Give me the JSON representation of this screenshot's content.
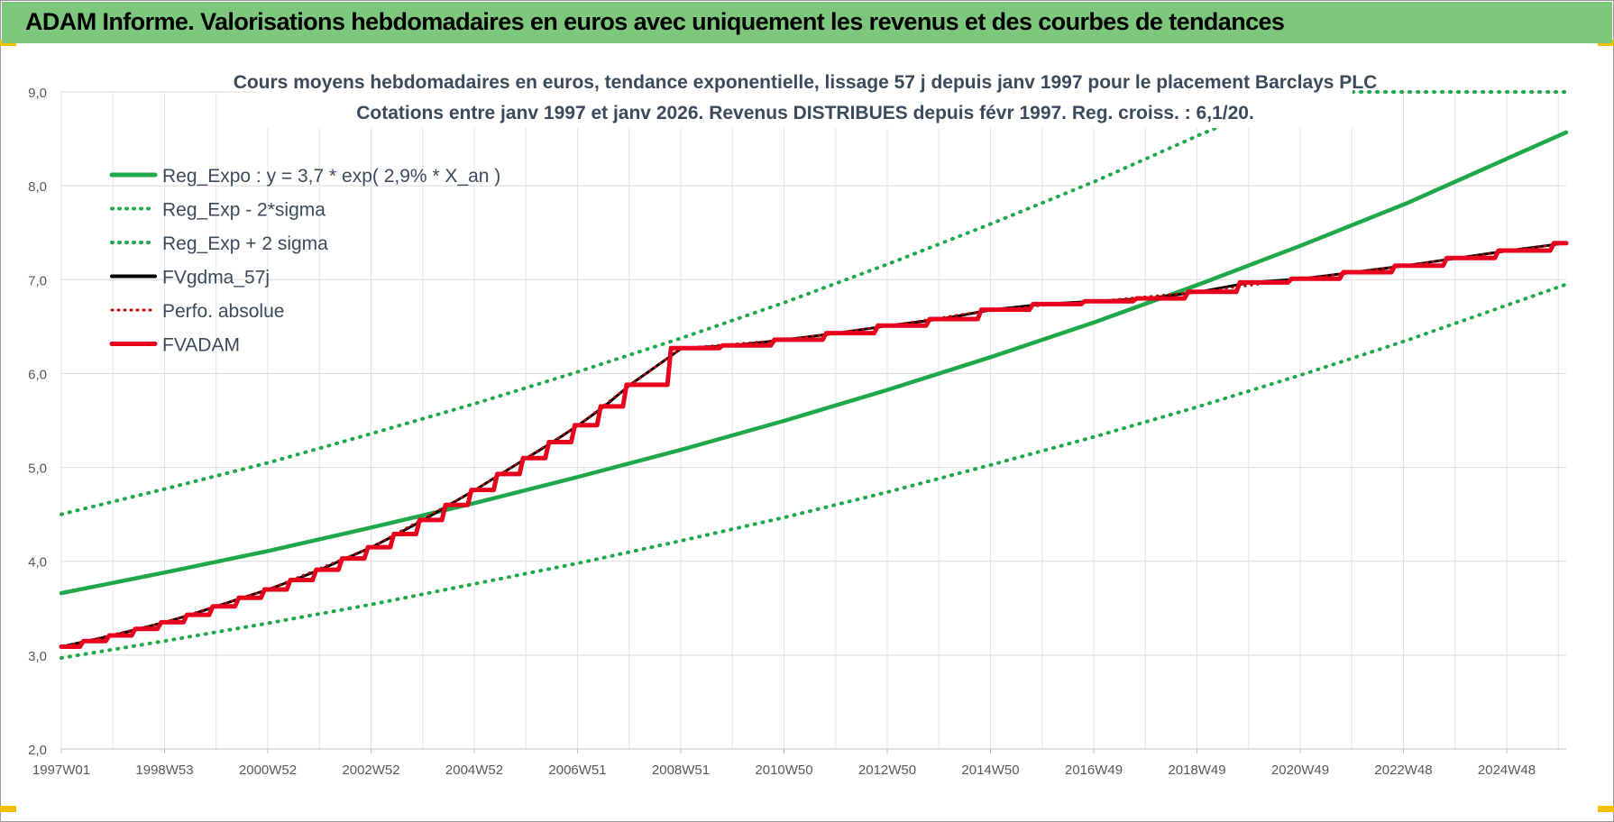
{
  "header": {
    "title": "ADAM Informe. Valorisations hebdomadaires en euros avec uniquement les revenus et des courbes de tendances"
  },
  "colors": {
    "header_bg": "#7dc87d",
    "trend_green": "#1fa84a",
    "fvadam_red": "#e8001c",
    "perfo_red": "#c00000",
    "fvgdma_black": "#000000"
  },
  "chart_data": {
    "type": "line",
    "title_line1": "Cours moyens hebdomadaires en euros, tendance exponentielle, lissage 57 j depuis janv 1997 pour le placement Barclays PLC",
    "title_line2": "Cotations entre janv 1997 et janv 2026. Revenus DISTRIBUES depuis févr 1997. Reg. croiss. : 6,1/20.",
    "ylim": [
      2.0,
      9.0
    ],
    "y_ticks": [
      "2,0",
      "3,0",
      "4,0",
      "5,0",
      "6,0",
      "7,0",
      "8,0",
      "9,0"
    ],
    "x_tick_labels": [
      "1997W01",
      "1998W53",
      "2000W52",
      "2002W52",
      "2004W52",
      "2006W51",
      "2008W51",
      "2010W50",
      "2012W50",
      "2014W50",
      "2016W49",
      "2018W49",
      "2020W49",
      "2022W48",
      "2024W48"
    ],
    "x_range_years": [
      1997.0,
      2026.1
    ],
    "grid": true,
    "legend_position": "top-left",
    "legend": [
      {
        "label": "Reg_Expo : y = 3,7 * exp( 2,9% *  X_an )",
        "style": "solid-green"
      },
      {
        "label": "Reg_Exp - 2*sigma",
        "style": "dotted-green"
      },
      {
        "label": "Reg_Exp + 2 sigma",
        "style": "dotted-green"
      },
      {
        "label": "FVgdma_57j",
        "style": "solid-black"
      },
      {
        "label": "Perfo. absolue",
        "style": "dotted-red"
      },
      {
        "label": "FVADAM",
        "style": "solid-red"
      }
    ],
    "series": [
      {
        "name": "Reg_Expo : y = 3,7 * exp( 2,9% *  X_an )",
        "x": [
          1997.0,
          1999.0,
          2001.0,
          2003.0,
          2005.0,
          2007.0,
          2009.0,
          2011.0,
          2013.0,
          2015.0,
          2017.0,
          2019.0,
          2021.0,
          2023.0,
          2026.1
        ],
        "y": [
          3.66,
          3.88,
          4.11,
          4.36,
          4.62,
          4.9,
          5.19,
          5.5,
          5.83,
          6.18,
          6.55,
          6.95,
          7.37,
          7.81,
          8.57
        ]
      },
      {
        "name": "Reg_Exp - 2*sigma",
        "x": [
          1997.0,
          1999.0,
          2001.0,
          2003.0,
          2005.0,
          2007.0,
          2009.0,
          2011.0,
          2013.0,
          2015.0,
          2017.0,
          2019.0,
          2021.0,
          2023.0,
          2026.1
        ],
        "y": [
          2.97,
          3.15,
          3.34,
          3.54,
          3.76,
          3.98,
          4.22,
          4.47,
          4.74,
          5.03,
          5.33,
          5.65,
          5.99,
          6.35,
          6.95
        ]
      },
      {
        "name": "Reg_Exp + 2 sigma",
        "x": [
          1997.0,
          1999.0,
          2001.0,
          2003.0,
          2005.0,
          2007.0,
          2009.0,
          2011.0,
          2013.0,
          2015.0,
          2017.0,
          2019.0,
          2021.0,
          2023.0,
          2026.1
        ],
        "y": [
          4.5,
          4.77,
          5.05,
          5.36,
          5.68,
          6.02,
          6.38,
          6.76,
          7.17,
          7.6,
          8.05,
          8.54,
          9.0,
          9.0,
          9.0
        ]
      },
      {
        "name": "FVgdma_57j",
        "x": [
          1997.0,
          1997.5,
          1998.0,
          1998.5,
          1999.0,
          1999.5,
          2000.0,
          2000.5,
          2001.0,
          2001.5,
          2002.0,
          2002.5,
          2003.0,
          2003.5,
          2004.0,
          2004.5,
          2005.0,
          2005.5,
          2006.0,
          2006.5,
          2007.0,
          2007.5,
          2008.0,
          2009.0,
          2010.0,
          2011.0,
          2012.0,
          2013.0,
          2014.0,
          2015.0,
          2016.0,
          2017.0,
          2018.0,
          2019.0,
          2020.0,
          2021.0,
          2022.0,
          2023.0,
          2024.0,
          2025.0,
          2026.1
        ],
        "y": [
          3.09,
          3.15,
          3.21,
          3.28,
          3.35,
          3.43,
          3.52,
          3.61,
          3.7,
          3.8,
          3.91,
          4.03,
          4.15,
          4.29,
          4.44,
          4.6,
          4.76,
          4.93,
          5.1,
          5.27,
          5.45,
          5.65,
          5.88,
          6.27,
          6.3,
          6.36,
          6.43,
          6.51,
          6.58,
          6.68,
          6.74,
          6.77,
          6.8,
          6.87,
          6.97,
          7.01,
          7.08,
          7.15,
          7.23,
          7.31,
          7.39
        ]
      },
      {
        "name": "Perfo. absolue",
        "x": [
          1997.0,
          1999.0,
          2001.0,
          2003.0,
          2005.0,
          2007.0,
          2008.0,
          2009.0,
          2011.0,
          2013.0,
          2015.0,
          2017.0,
          2019.0,
          2021.0,
          2023.0,
          2026.1
        ],
        "y": [
          3.09,
          3.35,
          3.7,
          4.15,
          4.76,
          5.45,
          5.88,
          6.27,
          6.36,
          6.51,
          6.68,
          6.77,
          6.87,
          7.01,
          7.15,
          7.39
        ]
      },
      {
        "name": "FVADAM",
        "x": [
          1997.0,
          1997.5,
          1998.0,
          1998.5,
          1999.0,
          1999.5,
          2000.0,
          2000.5,
          2001.0,
          2001.5,
          2002.0,
          2002.5,
          2003.0,
          2003.5,
          2004.0,
          2004.5,
          2005.0,
          2005.5,
          2006.0,
          2006.5,
          2007.0,
          2007.5,
          2008.0,
          2009.0,
          2010.0,
          2011.0,
          2012.0,
          2013.0,
          2014.0,
          2015.0,
          2016.0,
          2017.0,
          2018.0,
          2019.0,
          2020.0,
          2021.0,
          2022.0,
          2023.0,
          2024.0,
          2025.0,
          2026.1
        ],
        "y": [
          3.09,
          3.15,
          3.21,
          3.28,
          3.35,
          3.43,
          3.52,
          3.61,
          3.7,
          3.8,
          3.91,
          4.03,
          4.15,
          4.29,
          4.44,
          4.6,
          4.76,
          4.93,
          5.1,
          5.27,
          5.45,
          5.65,
          5.88,
          6.27,
          6.3,
          6.36,
          6.43,
          6.51,
          6.58,
          6.68,
          6.74,
          6.77,
          6.8,
          6.87,
          6.97,
          7.01,
          7.08,
          7.15,
          7.23,
          7.31,
          7.39
        ]
      }
    ]
  }
}
